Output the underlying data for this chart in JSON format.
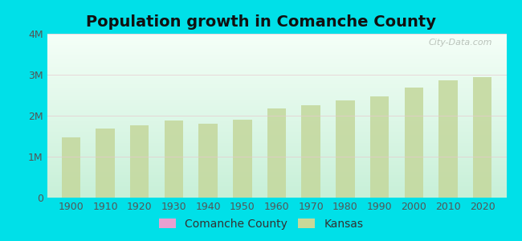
{
  "title": "Population growth in Comanche County",
  "years": [
    1900,
    1910,
    1920,
    1930,
    1940,
    1950,
    1960,
    1970,
    1980,
    1990,
    2000,
    2010,
    2020
  ],
  "kansas_population": [
    1470495,
    1690949,
    1769257,
    1880999,
    1801028,
    1905299,
    2178611,
    2249071,
    2363679,
    2477574,
    2688418,
    2853118,
    2937880
  ],
  "bar_color": "#c5d9a0",
  "outer_background": "#00e0e8",
  "plot_bg_top": "#f5fff8",
  "plot_bg_bottom": "#c8f0d8",
  "ylim": [
    0,
    4000000
  ],
  "yticks": [
    0,
    1000000,
    2000000,
    3000000,
    4000000
  ],
  "ytick_labels": [
    "0",
    "1M",
    "2M",
    "3M",
    "4M"
  ],
  "legend_comanche_color": "#e8a0d0",
  "legend_kansas_color": "#c8d898",
  "watermark": "City-Data.com",
  "title_fontsize": 14,
  "axis_fontsize": 9,
  "legend_fontsize": 10,
  "bar_width": 5.5
}
